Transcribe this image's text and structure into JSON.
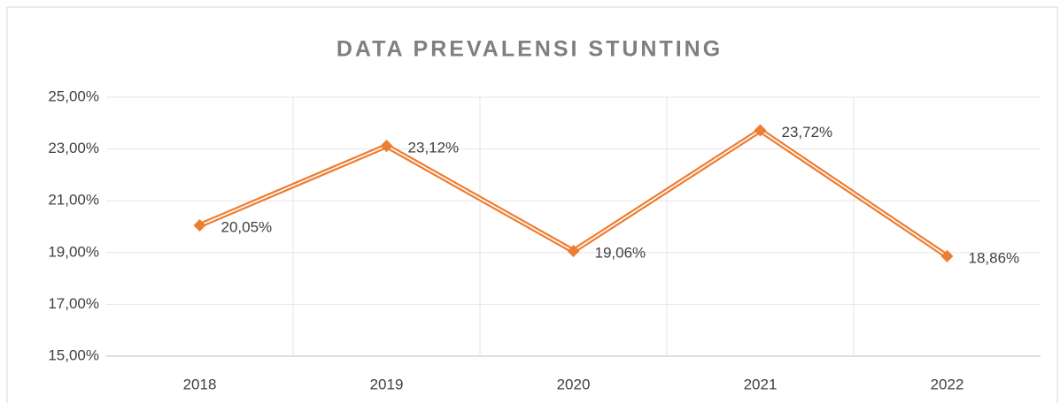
{
  "chart_data": {
    "type": "line",
    "title": "DATA PREVALENSI STUNTING",
    "categories": [
      "2018",
      "2019",
      "2020",
      "2021",
      "2022"
    ],
    "series": [
      {
        "name": "Prevalensi",
        "color": "#ed7d31",
        "values": [
          20.05,
          23.12,
          19.06,
          23.72,
          18.86
        ],
        "value_labels": [
          "20,05%",
          "23,12%",
          "19,06%",
          "23,72%",
          "18,86%"
        ]
      }
    ],
    "ylim": [
      15,
      25
    ],
    "yticks": [
      {
        "value": 15,
        "label": "15,00%"
      },
      {
        "value": 17,
        "label": "17,00%"
      },
      {
        "value": 19,
        "label": "19,00%"
      },
      {
        "value": 21,
        "label": "21,00%"
      },
      {
        "value": 23,
        "label": "23,00%"
      },
      {
        "value": 25,
        "label": "25,00%"
      }
    ],
    "grid": true
  }
}
